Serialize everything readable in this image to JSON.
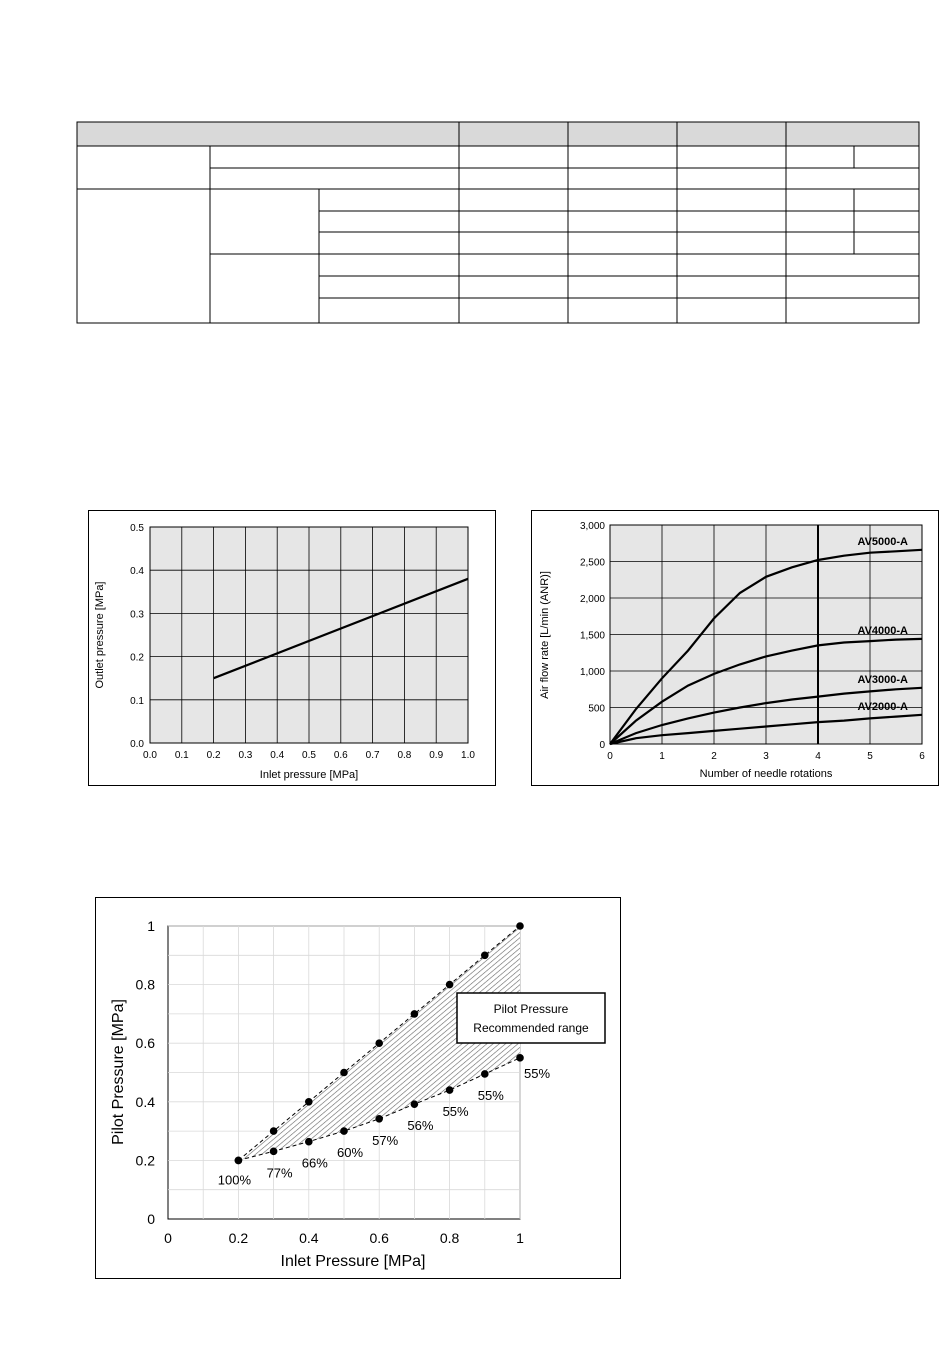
{
  "chart_data": [
    {
      "type": "line",
      "title": "",
      "xlabel": "Inlet pressure [MPa]",
      "ylabel": "Outlet pressure [MPa]",
      "xlim": [
        0,
        1.0
      ],
      "ylim": [
        0,
        0.5
      ],
      "xticks": [
        "0.0",
        "0.1",
        "0.2",
        "0.3",
        "0.4",
        "0.5",
        "0.6",
        "0.7",
        "0.8",
        "0.9",
        "1.0"
      ],
      "yticks": [
        "0.0",
        "0.1",
        "0.2",
        "0.3",
        "0.4",
        "0.5"
      ],
      "grid": true,
      "background": "#e6e6e6",
      "series": [
        {
          "x": [
            0.2,
            1.0
          ],
          "y": [
            0.15,
            0.38
          ]
        }
      ]
    },
    {
      "type": "line",
      "title": "",
      "xlabel": "Number of needle rotations",
      "ylabel": "Air flow rate [L/min (ANR)]",
      "xlim": [
        0,
        6
      ],
      "ylim": [
        0,
        3000
      ],
      "xticks": [
        "0",
        "1",
        "2",
        "3",
        "4",
        "5",
        "6"
      ],
      "yticks": [
        "0",
        "500",
        "1,000",
        "1,500",
        "2,000",
        "2,500",
        "3,000"
      ],
      "grid": true,
      "background": "#e6e6e6",
      "emphasized_x": 4,
      "series": [
        {
          "name": "AV5000-A",
          "x": [
            0,
            0.5,
            1,
            1.5,
            2,
            2.5,
            3,
            3.5,
            4,
            4.5,
            5,
            5.5,
            6
          ],
          "y": [
            0,
            480,
            900,
            1280,
            1720,
            2070,
            2290,
            2420,
            2520,
            2580,
            2620,
            2640,
            2660
          ]
        },
        {
          "name": "AV4000-A",
          "x": [
            0,
            0.5,
            1,
            1.5,
            2,
            2.5,
            3,
            3.5,
            4,
            4.5,
            5,
            5.5,
            6
          ],
          "y": [
            0,
            320,
            580,
            800,
            960,
            1090,
            1200,
            1280,
            1350,
            1390,
            1410,
            1430,
            1440
          ]
        },
        {
          "name": "AV3000-A",
          "x": [
            0,
            0.5,
            1,
            1.5,
            2,
            2.5,
            3,
            3.5,
            4,
            4.5,
            5,
            5.5,
            6
          ],
          "y": [
            0,
            150,
            260,
            350,
            430,
            500,
            560,
            610,
            650,
            690,
            720,
            750,
            770
          ]
        },
        {
          "name": "AV2000-A",
          "x": [
            0,
            0.5,
            1,
            1.5,
            2,
            2.5,
            3,
            3.5,
            4,
            4.5,
            5,
            5.5,
            6
          ],
          "y": [
            0,
            80,
            120,
            150,
            180,
            210,
            240,
            270,
            300,
            320,
            350,
            375,
            400
          ]
        }
      ]
    },
    {
      "type": "area",
      "title": "",
      "xlabel": "Inlet Pressure  [MPa]",
      "ylabel": "Pilot Pressure [MPa]",
      "xlim": [
        0,
        1
      ],
      "ylim": [
        0,
        1
      ],
      "xticks": [
        "0",
        "0.2",
        "0.4",
        "0.6",
        "0.8",
        "1"
      ],
      "yticks": [
        "0",
        "0.2",
        "0.4",
        "0.6",
        "0.8",
        "1"
      ],
      "grid": true,
      "legend_lines": [
        "Pilot Pressure",
        "Recommended range"
      ],
      "legend_placement": "right",
      "series": [
        {
          "x": [
            0.2,
            0.3,
            0.4,
            0.5,
            0.6,
            0.7,
            0.8,
            0.9,
            1.0
          ],
          "y": [
            0.2,
            0.3,
            0.4,
            0.5,
            0.6,
            0.7,
            0.8,
            0.9,
            1.0
          ]
        },
        {
          "x": [
            0.2,
            0.3,
            0.4,
            0.5,
            0.6,
            0.7,
            0.8,
            0.9,
            1.0
          ],
          "y": [
            0.2,
            0.231,
            0.264,
            0.3,
            0.342,
            0.392,
            0.44,
            0.495,
            0.55
          ],
          "labels": [
            "100%",
            "77%",
            "66%",
            "60%",
            "57%",
            "56%",
            "55%",
            "55%",
            "55%"
          ]
        }
      ]
    }
  ]
}
